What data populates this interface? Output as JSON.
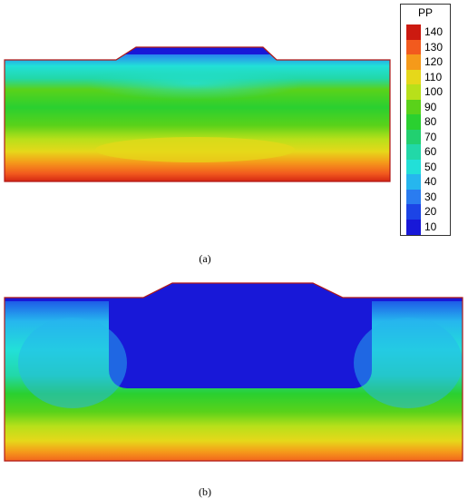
{
  "panels": [
    {
      "label": "(a)"
    },
    {
      "label": "(b)"
    }
  ],
  "legend": {
    "title": "PP",
    "entries": [
      {
        "label": "140",
        "color": "#cc1a10"
      },
      {
        "label": "130",
        "color": "#f25a1e"
      },
      {
        "label": "120",
        "color": "#f59a1a"
      },
      {
        "label": "110",
        "color": "#e6d81a"
      },
      {
        "label": "100",
        "color": "#b8e01a"
      },
      {
        "label": "90",
        "color": "#5ad21a"
      },
      {
        "label": "80",
        "color": "#2ad030"
      },
      {
        "label": "70",
        "color": "#22d070"
      },
      {
        "label": "60",
        "color": "#22d8a8"
      },
      {
        "label": "50",
        "color": "#22e0d8"
      },
      {
        "label": "40",
        "color": "#26b6ee"
      },
      {
        "label": "30",
        "color": "#2a7cf0"
      },
      {
        "label": "20",
        "color": "#1c44e6"
      },
      {
        "label": "10",
        "color": "#1818d8"
      }
    ]
  }
}
